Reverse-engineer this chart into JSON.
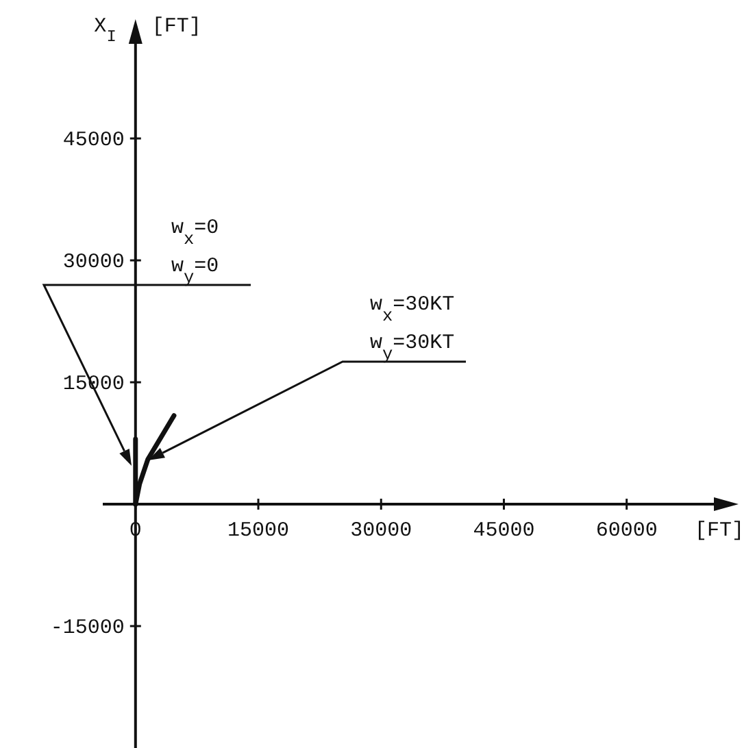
{
  "chart_data": {
    "type": "line",
    "xlabel": "[FT]",
    "ylabel": "X$_{I}$ [FT]",
    "xlim": [
      -4000,
      73000
    ],
    "ylim": [
      -30000,
      59000
    ],
    "xticks": [
      0,
      15000,
      30000,
      45000,
      60000
    ],
    "yticks": [
      -15000,
      15000,
      30000,
      45000
    ],
    "line_style": "solid",
    "marker": "none",
    "series": [
      {
        "color": "#111111",
        "x": [
          0,
          0
        ],
        "values": [
          0,
          8000
        ]
      },
      {
        "color": "#111111",
        "x": [
          0,
          500,
          1500,
          4700
        ],
        "values": [
          0,
          2500,
          5500,
          10900
        ]
      }
    ],
    "annotations": [
      "w$_{x}$=0 w$_{y}$=0",
      "w$_{x}$=30KT w$_{y}$=30KT"
    ]
  }
}
